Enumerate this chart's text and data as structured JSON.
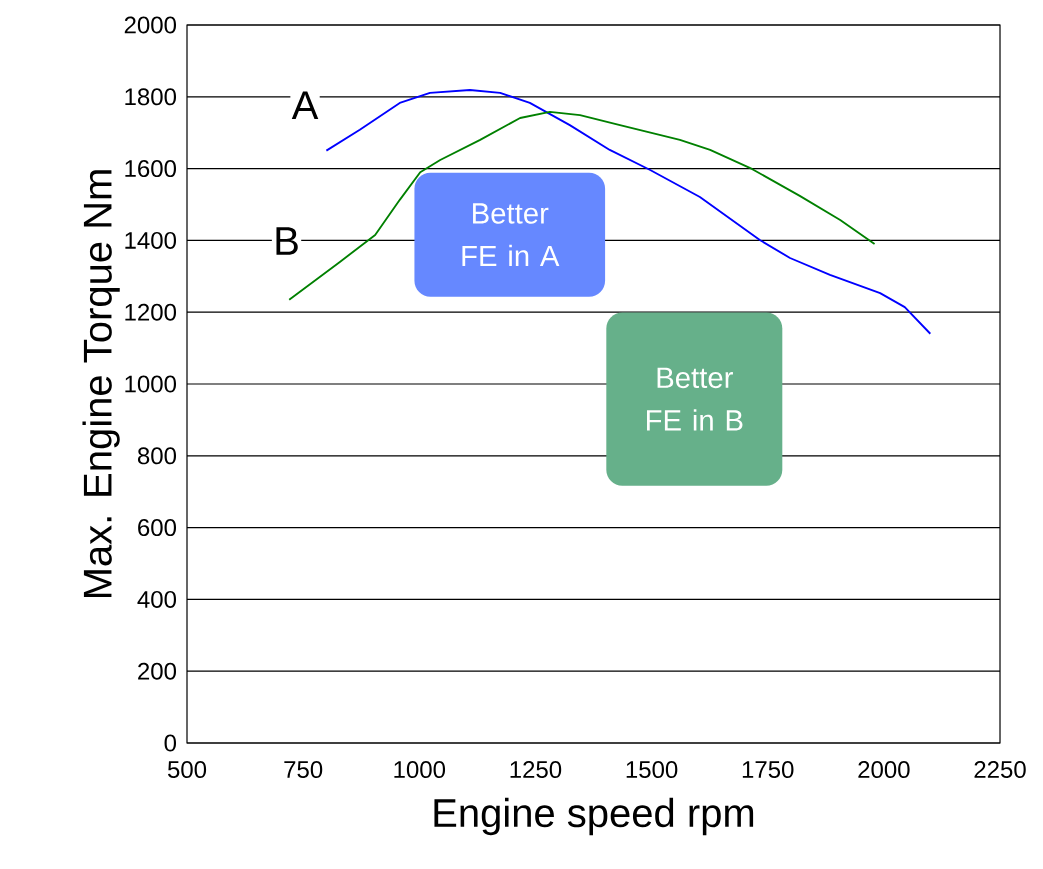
{
  "chart_data": {
    "type": "line",
    "xlabel": "Engine speed rpm",
    "ylabel": "Max. Engine Torque Nm",
    "xlim": [
      500,
      2250
    ],
    "ylim": [
      0,
      2000
    ],
    "xticks": [
      500,
      750,
      1000,
      1250,
      1500,
      1750,
      2000,
      2250
    ],
    "yticks": [
      0,
      200,
      400,
      600,
      800,
      1000,
      1200,
      1400,
      1600,
      1800,
      2000
    ],
    "grid": "y",
    "legend": false,
    "marker": "none",
    "line_style": "solid",
    "annotations": [
      "Better FE in A",
      "Better FE in B"
    ],
    "series": [
      {
        "name": "A",
        "color": "#0000ff",
        "x": [
          800,
          872,
          958,
          1023,
          1109,
          1174,
          1238,
          1324,
          1410,
          1497,
          1604,
          1733,
          1798,
          1884,
          1992,
          2045,
          2100
        ],
        "values": [
          1650,
          1708,
          1783,
          1811,
          1819,
          1811,
          1783,
          1721,
          1652,
          1596,
          1521,
          1401,
          1351,
          1304,
          1253,
          1214,
          1140
        ]
      },
      {
        "name": "B",
        "color": "#008000",
        "x": [
          720,
          829,
          905,
          958,
          1002,
          1045,
          1131,
          1217,
          1281,
          1346,
          1432,
          1561,
          1626,
          1716,
          1819,
          1906,
          1980
        ],
        "values": [
          1235,
          1340,
          1415,
          1513,
          1590,
          1624,
          1680,
          1741,
          1758,
          1749,
          1721,
          1680,
          1652,
          1599,
          1524,
          1457,
          1390
        ]
      }
    ]
  }
}
